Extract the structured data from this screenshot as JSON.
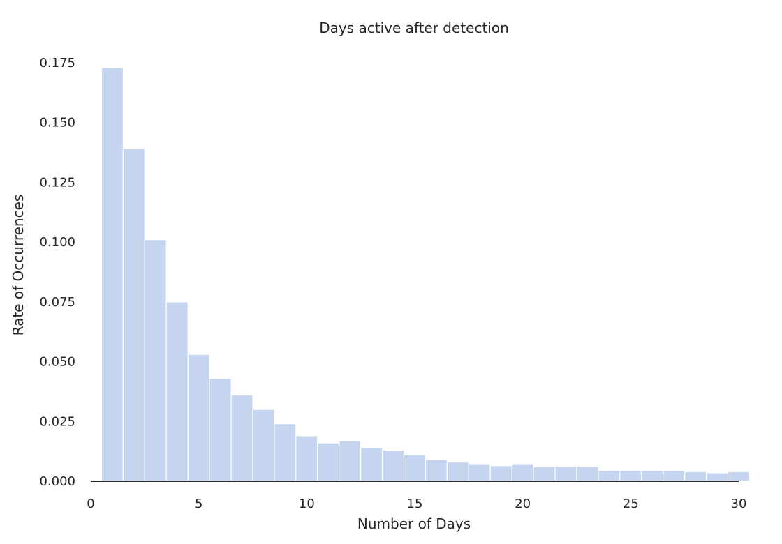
{
  "chart_data": {
    "type": "bar",
    "title": "Days active after detection",
    "xlabel": "Number of Days",
    "ylabel": "Rate of Occurrences",
    "xlim": [
      0,
      30
    ],
    "ylim": [
      0,
      0.175
    ],
    "xticks": [
      "0",
      "5",
      "10",
      "15",
      "20",
      "25",
      "30"
    ],
    "yticks": [
      "0.000",
      "0.025",
      "0.050",
      "0.075",
      "0.100",
      "0.125",
      "0.150",
      "0.175"
    ],
    "grid": false,
    "bar_color": "#c5d4ef",
    "bins": {
      "start": 0.5,
      "width": 1.0,
      "values": [
        0.173,
        0.139,
        0.101,
        0.075,
        0.053,
        0.043,
        0.036,
        0.03,
        0.024,
        0.019,
        0.016,
        0.017,
        0.014,
        0.013,
        0.011,
        0.009,
        0.008,
        0.007,
        0.0065,
        0.007,
        0.006,
        0.006,
        0.006,
        0.0045,
        0.0045,
        0.0045,
        0.0045,
        0.004,
        0.0035,
        0.004
      ]
    }
  }
}
